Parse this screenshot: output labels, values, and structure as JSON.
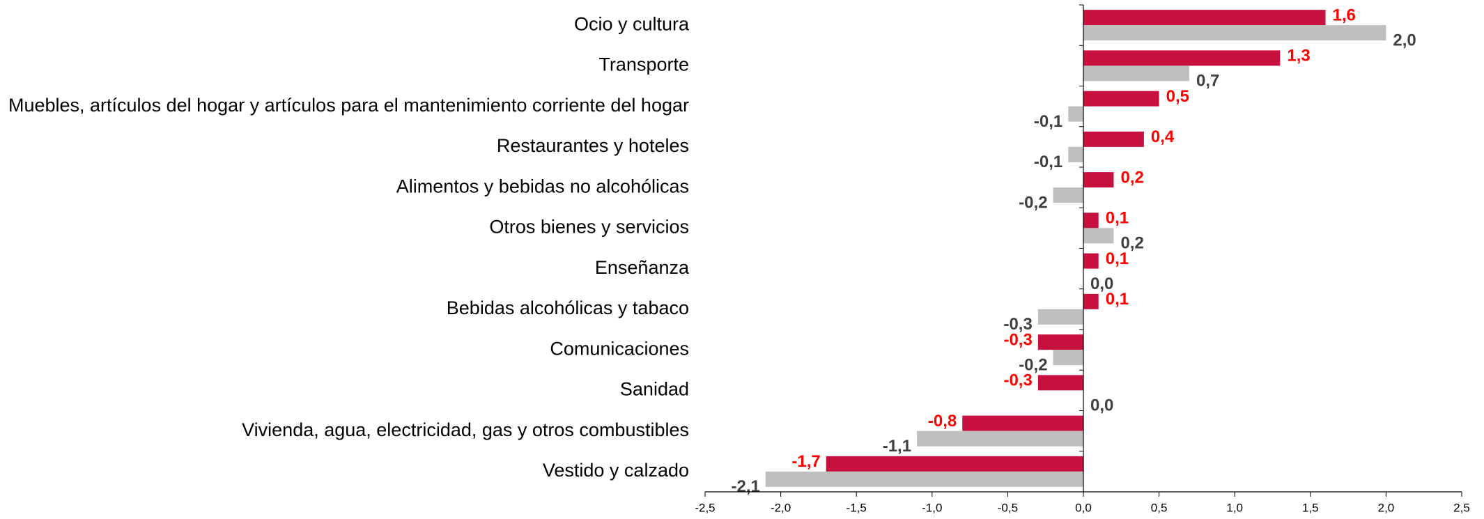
{
  "chart_data": {
    "type": "bar",
    "orientation": "horizontal",
    "categories": [
      "Ocio y cultura",
      "Transporte",
      "Muebles, artículos del hogar y artículos para el mantenimiento corriente del hogar",
      "Restaurantes y hoteles",
      "Alimentos y bebidas no alcohólicas",
      "Otros bienes y servicios",
      "Enseñanza",
      "Bebidas alcohólicas y tabaco",
      "Comunicaciones",
      "Sanidad",
      "Vivienda, agua, electricidad, gas y otros combustibles",
      "Vestido y calzado"
    ],
    "series": [
      {
        "color": "#c8103e",
        "label_color": "#ff0000",
        "values": [
          1.6,
          1.3,
          0.5,
          0.4,
          0.2,
          0.1,
          0.1,
          0.1,
          -0.3,
          -0.3,
          -0.8,
          -1.7
        ],
        "value_labels": [
          "1,6",
          "1,3",
          "0,5",
          "0,4",
          "0,2",
          "0,1",
          "0,1",
          "0,1",
          "-0,3",
          "-0,3",
          "-0,8",
          "-1,7"
        ]
      },
      {
        "color": "#bfbfbf",
        "label_color": "#404040",
        "values": [
          2.0,
          0.7,
          -0.1,
          -0.1,
          -0.2,
          0.2,
          0.0,
          -0.3,
          -0.2,
          0.0,
          -1.1,
          -2.1
        ],
        "value_labels": [
          "2,0",
          "0,7",
          "-0,1",
          "-0,1",
          "-0,2",
          "0,2",
          "0,0",
          "-0,3",
          "-0,2",
          "0,0",
          "-1,1",
          "-2,1"
        ]
      }
    ],
    "xlim": [
      -2.5,
      2.5
    ],
    "xticks": [
      {
        "value": -2.5,
        "label": "-2,5"
      },
      {
        "value": -2.0,
        "label": "-2,0"
      },
      {
        "value": -1.5,
        "label": "-1,5"
      },
      {
        "value": -1.0,
        "label": "-1,0"
      },
      {
        "value": -0.5,
        "label": "-0,5"
      },
      {
        "value": 0.0,
        "label": "0,0"
      },
      {
        "value": 0.5,
        "label": "0,5"
      },
      {
        "value": 1.0,
        "label": "1,0"
      },
      {
        "value": 1.5,
        "label": "1,5"
      },
      {
        "value": 2.0,
        "label": "2,0"
      },
      {
        "value": 2.5,
        "label": "2,5"
      }
    ],
    "grid": false
  }
}
